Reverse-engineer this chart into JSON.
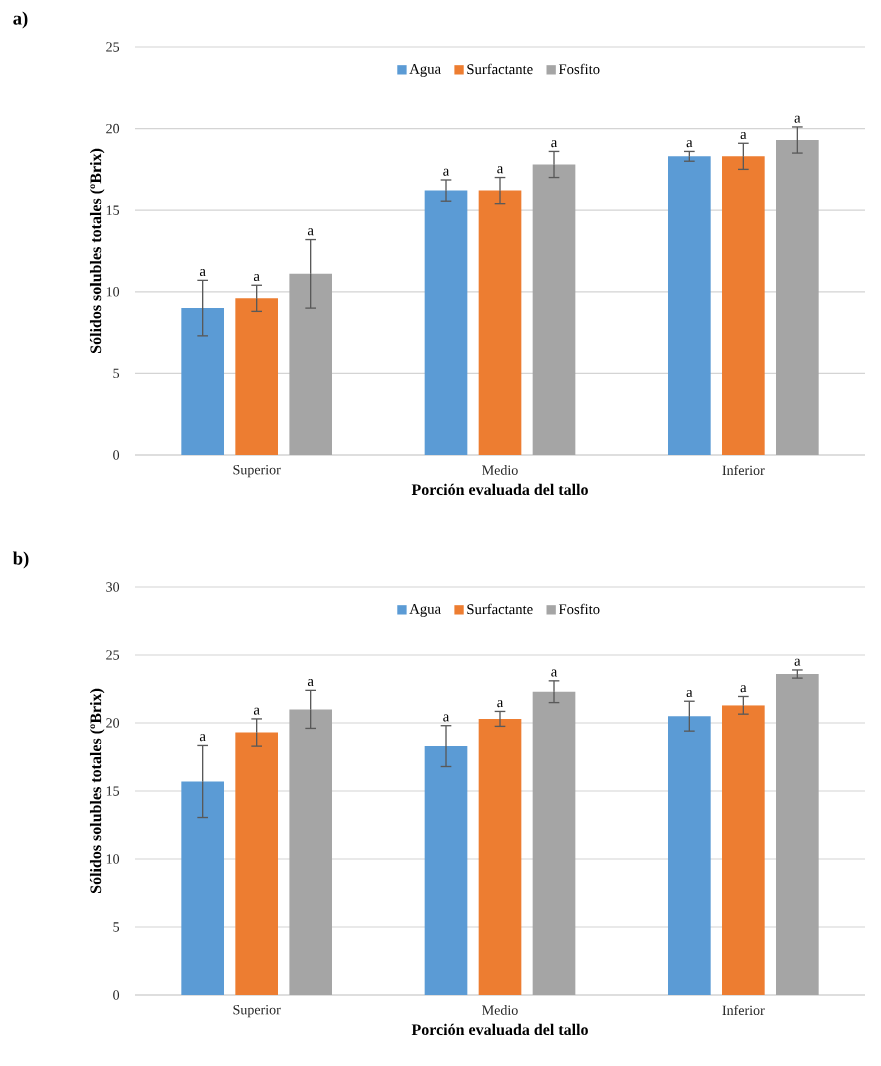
{
  "chart_data": [
    {
      "type": "bar",
      "title": "a)",
      "xlabel": "Porción evaluada del tallo",
      "ylabel": "Sólidos solubles totales (ºBrix)",
      "categories": [
        "Superior",
        "Medio",
        "Inferior"
      ],
      "series": [
        {
          "name": "Agua",
          "color": "#5b9bd5",
          "values": [
            9.0,
            16.2,
            18.3
          ],
          "errors": [
            1.7,
            0.65,
            0.3
          ],
          "value_labels": [
            "a",
            "a",
            "a"
          ]
        },
        {
          "name": "Surfactante",
          "color": "#ed7d31",
          "values": [
            9.6,
            16.2,
            18.3
          ],
          "errors": [
            0.8,
            0.8,
            0.8
          ],
          "value_labels": [
            "a",
            "a",
            "a"
          ]
        },
        {
          "name": "Fosfito",
          "color": "#a5a5a5",
          "values": [
            11.1,
            17.8,
            19.3
          ],
          "errors": [
            2.1,
            0.8,
            0.8
          ],
          "value_labels": [
            "a",
            "a",
            "a"
          ]
        }
      ],
      "ylim": [
        0,
        25
      ],
      "yticks": [
        0,
        5,
        10,
        15,
        20,
        25
      ],
      "grid": "y",
      "legend": "top"
    },
    {
      "type": "bar",
      "title": "b)",
      "xlabel": "Porción evaluada del tallo",
      "ylabel": "Sólidos solubles totales (ºBrix)",
      "categories": [
        "Superior",
        "Medio",
        "Inferior"
      ],
      "series": [
        {
          "name": "Agua",
          "color": "#5b9bd5",
          "values": [
            15.7,
            18.3,
            20.5
          ],
          "errors": [
            2.65,
            1.5,
            1.1
          ],
          "value_labels": [
            "a",
            "a",
            "a"
          ]
        },
        {
          "name": "Surfactante",
          "color": "#ed7d31",
          "values": [
            19.3,
            20.3,
            21.3
          ],
          "errors": [
            1.0,
            0.55,
            0.65
          ],
          "value_labels": [
            "a",
            "a",
            "a"
          ]
        },
        {
          "name": "Fosfito",
          "color": "#a5a5a5",
          "values": [
            21.0,
            22.3,
            23.6
          ],
          "errors": [
            1.4,
            0.8,
            0.3
          ],
          "value_labels": [
            "a",
            "a",
            "a"
          ]
        }
      ],
      "ylim": [
        0,
        30
      ],
      "yticks": [
        0,
        5,
        10,
        15,
        20,
        25,
        30
      ],
      "grid": "y",
      "legend": "top"
    }
  ]
}
